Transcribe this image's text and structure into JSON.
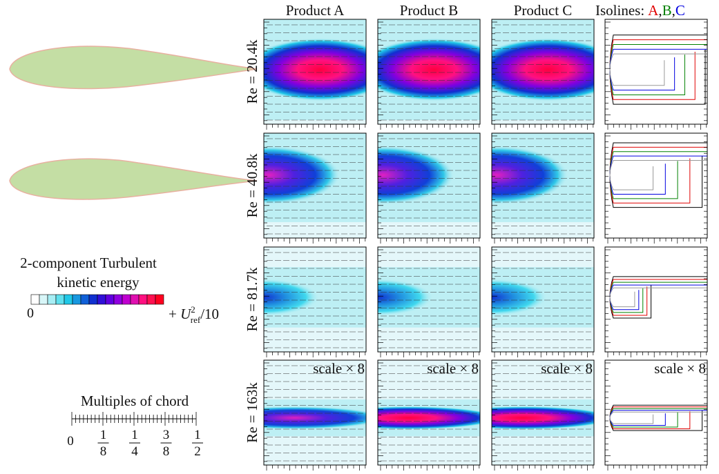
{
  "columns": [
    "Product A",
    "Product B",
    "Product C"
  ],
  "isolines": {
    "label": "Isolines:",
    "separator": ",",
    "names": [
      "A",
      "B",
      "C"
    ],
    "colors": [
      "#e00000",
      "#008000",
      "#0000e0"
    ]
  },
  "rows": [
    {
      "label": "Re = 20.4k"
    },
    {
      "label": "Re = 40.8k"
    },
    {
      "label": "Re = 81.7k"
    },
    {
      "label": "Re = 163k",
      "scale": "scale × 8"
    }
  ],
  "legend": {
    "title_line1": "2-component Turbulent",
    "title_line2": "kinetic energy",
    "min": "0",
    "max_prefix": "+",
    "max_symbol": "U",
    "max_sup": "2",
    "max_sub": "ref",
    "max_suffix": "/10"
  },
  "scale_bar": {
    "title": "Multiples of chord",
    "ticks": [
      {
        "label": "0"
      },
      {
        "num": "1",
        "den": "8"
      },
      {
        "num": "1",
        "den": "4"
      },
      {
        "num": "3",
        "den": "8"
      },
      {
        "num": "1",
        "den": "2"
      }
    ]
  }
}
